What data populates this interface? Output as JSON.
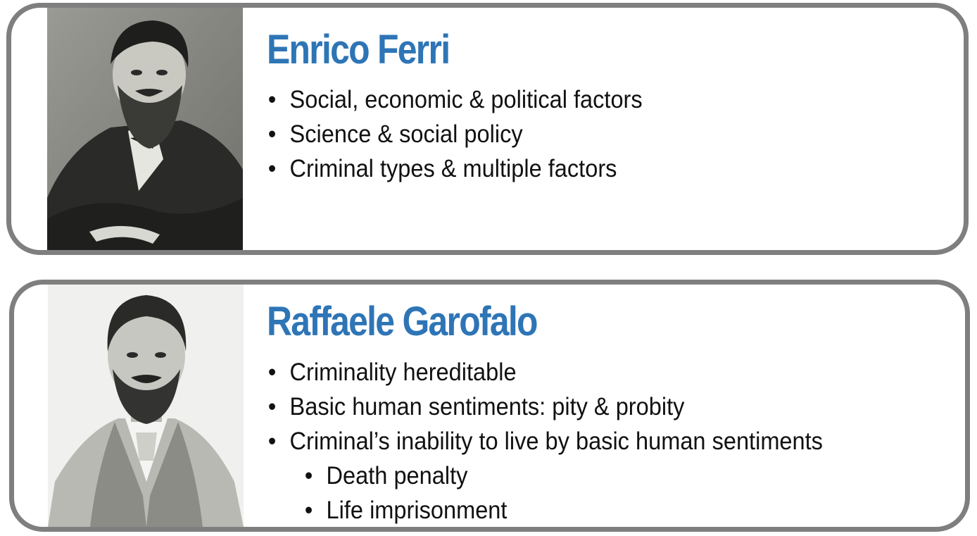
{
  "cards": [
    {
      "name": "Enrico Ferri",
      "bullets": [
        "Social, economic & political factors",
        "Science & social policy",
        "Criminal types & multiple factors"
      ]
    },
    {
      "name": "Raffaele Garofalo",
      "bullets": [
        "Criminality hereditable",
        "Basic human sentiments: pity & probity",
        "Criminal’s inability to live by basic human sentiments"
      ],
      "sub_bullets": [
        "Death penalty",
        "Life imprisonment"
      ]
    }
  ],
  "bullet_glyph": "•",
  "colors": {
    "name": "#2e75b6",
    "border": "#7f7f7f",
    "text": "#111111"
  }
}
